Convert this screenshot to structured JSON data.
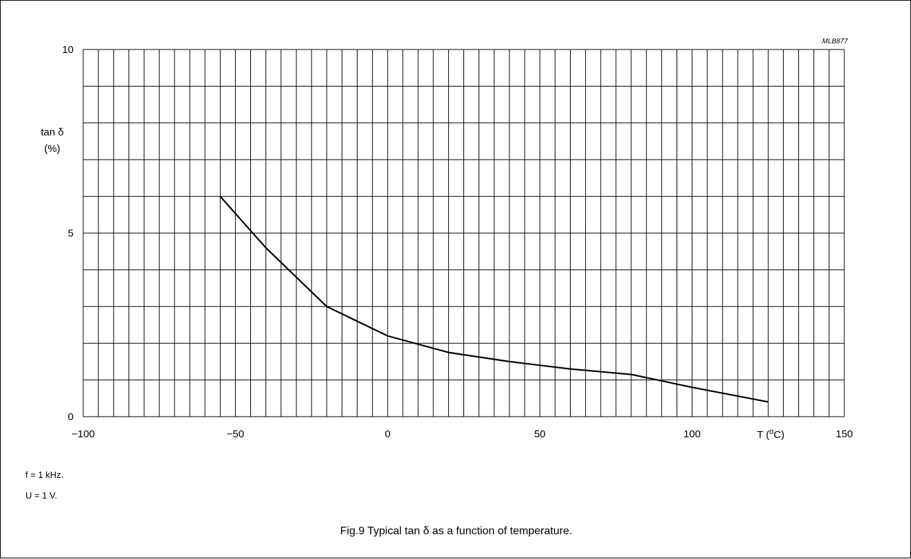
{
  "figure": {
    "code": "MLB877",
    "caption": "Fig.9  Typical tan δ as a function of temperature.",
    "notes": [
      "f = 1 kHz.",
      "U = 1 V."
    ]
  },
  "chart_data": {
    "type": "line",
    "title": "",
    "ylabel_line1": "tan  δ",
    "ylabel_line2": "(%)",
    "xlabel": "T  (°C)",
    "xlim": [
      -100,
      150
    ],
    "ylim": [
      0,
      10
    ],
    "x_ticks": [
      -100,
      -50,
      0,
      50,
      100,
      150
    ],
    "x_tick_labels": [
      "−100",
      "−50",
      "0",
      "50",
      "100",
      "150"
    ],
    "y_ticks": [
      0,
      5,
      10
    ],
    "y_tick_labels": [
      "0",
      "5",
      "10"
    ],
    "grid": true,
    "grid_x_step": 5,
    "grid_y_step": 1,
    "series": [
      {
        "x": [
          -55,
          -40,
          -20,
          0,
          20,
          40,
          60,
          80,
          100,
          125
        ],
        "y": [
          6.0,
          4.6,
          3.0,
          2.2,
          1.75,
          1.5,
          1.3,
          1.15,
          0.8,
          0.4
        ]
      }
    ]
  }
}
